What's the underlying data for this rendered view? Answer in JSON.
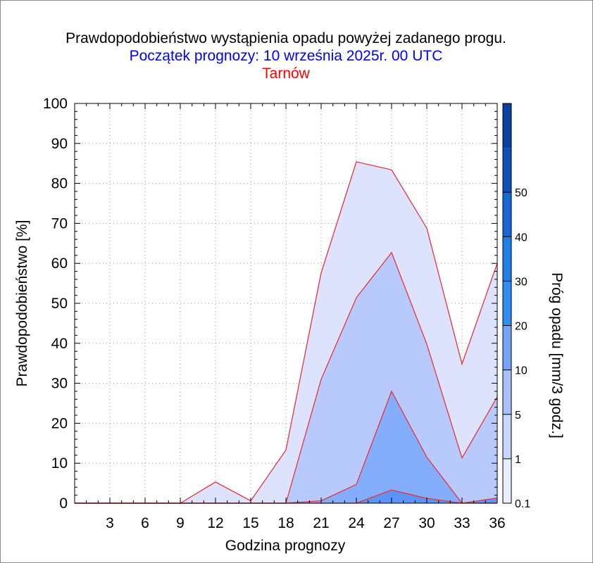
{
  "chart_data": {
    "type": "area",
    "title": "Prawdopodobieństwo wystąpienia opadu powyżej zadanego progu.",
    "subtitle": "Początek prognozy: 10 września 2025r. 00 UTC",
    "location": "Tarnów",
    "xlabel": "Godzina prognozy",
    "ylabel": "Prawdopodobieństwo [%]",
    "colorbar_label": "Próg opadu [mm/3 godz.]",
    "x": [
      0,
      3,
      6,
      9,
      12,
      15,
      18,
      21,
      24,
      27,
      30,
      33,
      36
    ],
    "xticks": [
      3,
      6,
      9,
      12,
      15,
      18,
      21,
      24,
      27,
      30,
      33,
      36
    ],
    "xlim": [
      0,
      36
    ],
    "yticks": [
      0,
      10,
      20,
      30,
      40,
      50,
      60,
      70,
      80,
      90,
      100
    ],
    "ylim": [
      0,
      100
    ],
    "grid": true,
    "series": [
      {
        "name": "0.1",
        "color": "#dde3fd",
        "values": [
          0,
          0,
          0,
          0,
          5.3,
          0.6,
          13.3,
          57.6,
          85.4,
          83.4,
          68.8,
          34.8,
          60.0
        ]
      },
      {
        "name": "1",
        "color": "#b8cafc",
        "values": [
          0,
          0,
          0,
          0,
          0,
          0,
          0,
          31.0,
          51.4,
          62.7,
          39.8,
          11.3,
          26.6
        ]
      },
      {
        "name": "5",
        "color": "#84adfc",
        "values": [
          0,
          0,
          0,
          0,
          0,
          0,
          0,
          0.6,
          4.7,
          28.0,
          11.5,
          0,
          0
        ]
      },
      {
        "name": "10",
        "color": "#5d94f7",
        "values": [
          0,
          0,
          0,
          0,
          0,
          0,
          0,
          0,
          0,
          3.3,
          1.2,
          0,
          1.3
        ]
      }
    ],
    "outline_color": "#e8323c",
    "colorbar": {
      "labels": [
        "0.1",
        "1",
        "5",
        "10",
        "20",
        "30",
        "40",
        "50"
      ],
      "bands": [
        {
          "from": 0,
          "to": 1,
          "color": "#eaeefe"
        },
        {
          "from": 1,
          "to": 2,
          "color": "#c9d6fc"
        },
        {
          "from": 2,
          "to": 3,
          "color": "#a8c0fb"
        },
        {
          "from": 3,
          "to": 4,
          "color": "#74a4fa"
        },
        {
          "from": 4,
          "to": 5,
          "color": "#2f8ff2"
        },
        {
          "from": 5,
          "to": 6,
          "color": "#1d7fe8"
        },
        {
          "from": 6,
          "to": 7,
          "color": "#1567d4"
        },
        {
          "from": 7,
          "to": 8,
          "color": "#0f4fb8"
        },
        {
          "from": 8,
          "to": 9,
          "color": "#0a3f9f"
        }
      ]
    }
  }
}
